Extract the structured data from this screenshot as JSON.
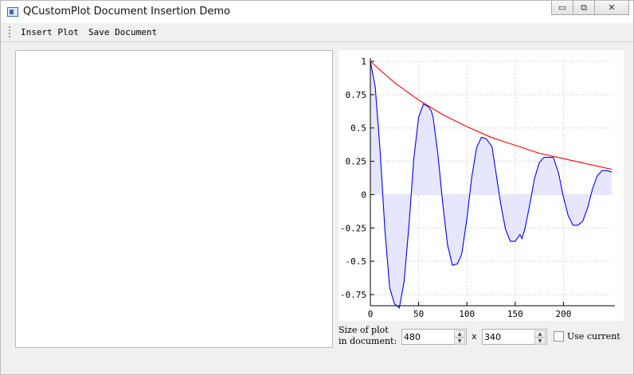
{
  "window": {
    "title": "QCustomPlot Document Insertion Demo",
    "controls": [
      "▭",
      "⧉",
      "✕"
    ]
  },
  "toolbar": {
    "insert_label": "Insert Plot",
    "save_label": "Save Document"
  },
  "size_controls": {
    "label_line1": "Size of plot",
    "label_line2": "in document:",
    "width_value": "480",
    "x_label": "x",
    "height_value": "340",
    "use_current_label": "Use current",
    "use_current_checked": false
  },
  "chart_data": {
    "type": "line",
    "title": "",
    "xlabel": "",
    "ylabel": "",
    "xlim": [
      0,
      250
    ],
    "ylim": [
      -0.8,
      1.0
    ],
    "grid": true,
    "x_ticks": [
      0,
      50,
      100,
      150,
      200
    ],
    "y_ticks": [
      1,
      0.75,
      0.5,
      0.25,
      0,
      -0.25,
      -0.5,
      -0.75
    ],
    "series": [
      {
        "color": "#0000ff",
        "fill": "#e6e6ff",
        "x": [
          0,
          5,
          10,
          15,
          20,
          25,
          30,
          35,
          40,
          45,
          50,
          55,
          60,
          63,
          65,
          70,
          75,
          80,
          85,
          90,
          94,
          95,
          100,
          105,
          110,
          115,
          120,
          125,
          126,
          130,
          135,
          140,
          145,
          150,
          155,
          157,
          160,
          165,
          170,
          175,
          180,
          185,
          189,
          190,
          195,
          200,
          205,
          210,
          215,
          220,
          225,
          230,
          235,
          240,
          245,
          250
        ],
        "values": [
          1.0,
          0.81,
          0.34,
          -0.26,
          -0.7,
          -0.82,
          -0.85,
          -0.65,
          -0.23,
          0.27,
          0.58,
          0.68,
          0.66,
          0.63,
          0.58,
          0.3,
          -0.07,
          -0.38,
          -0.53,
          -0.52,
          -0.46,
          -0.43,
          -0.18,
          0.13,
          0.35,
          0.43,
          0.42,
          0.37,
          0.36,
          0.17,
          -0.07,
          -0.26,
          -0.35,
          -0.35,
          -0.3,
          -0.33,
          -0.26,
          -0.08,
          0.12,
          0.24,
          0.28,
          0.28,
          0.28,
          0.27,
          0.16,
          -0.02,
          -0.16,
          -0.23,
          -0.23,
          -0.2,
          -0.1,
          0.04,
          0.14,
          0.18,
          0.18,
          0.17
        ]
      },
      {
        "color": "#ff0000",
        "x": [
          0,
          25,
          50,
          75,
          100,
          125,
          150,
          175,
          200,
          225,
          250
        ],
        "values": [
          1.0,
          0.84,
          0.71,
          0.6,
          0.51,
          0.43,
          0.37,
          0.31,
          0.27,
          0.23,
          0.19
        ]
      }
    ]
  }
}
